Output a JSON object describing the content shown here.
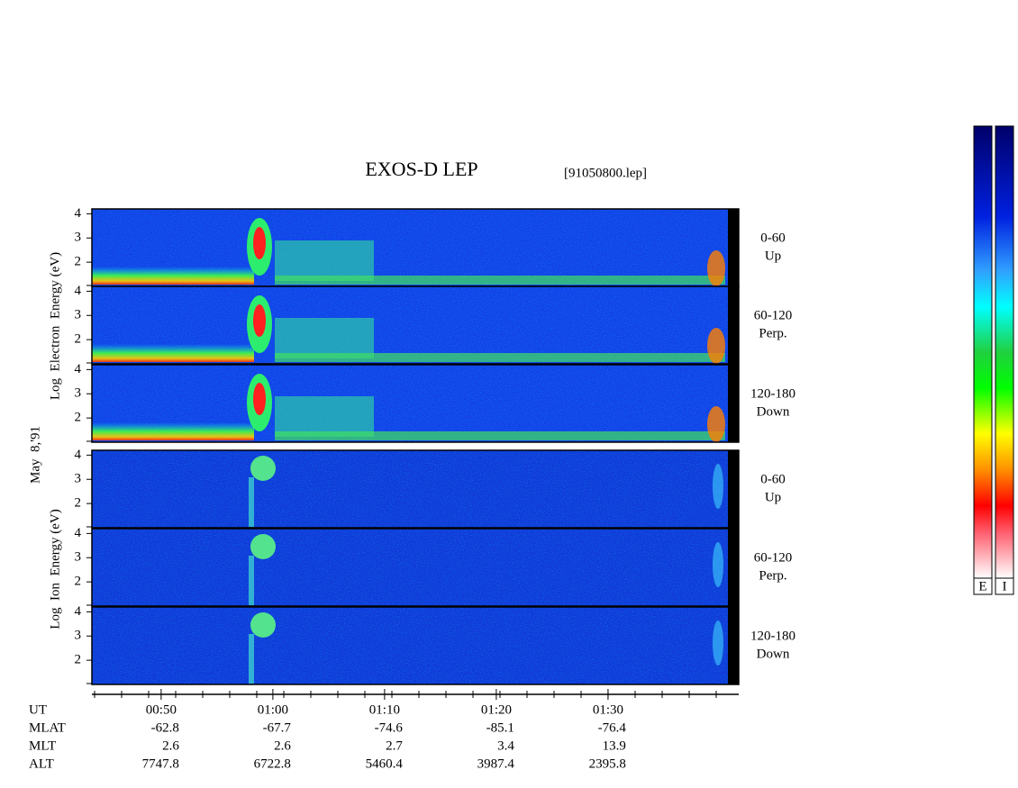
{
  "chart_data": {
    "type": "spectrogram",
    "title": "EXOS-D LEP",
    "subtitle": "[91050800.lep]",
    "date": "May  8,'91",
    "electron_ylabel": "Log  Electron  Energy (eV)",
    "ion_ylabel": "Log  Ion  Energy (eV)",
    "panel_labels": [
      [
        "0-60",
        "Up"
      ],
      [
        "60-120",
        "Perp."
      ],
      [
        "120-180",
        "Down"
      ]
    ],
    "ylim": [
      1,
      4.2
    ],
    "yticks": [
      2,
      3,
      4
    ],
    "xlabel": "UT",
    "xlim": [
      43.8,
      101.7
    ],
    "xticks": [
      {
        "value": 50,
        "label": "00:50"
      },
      {
        "value": 60,
        "label": "01:00"
      },
      {
        "value": 70,
        "label": "01:10"
      },
      {
        "value": 80,
        "label": "01:20"
      },
      {
        "value": 90,
        "label": "01:30"
      }
    ],
    "ephemeris": [
      {
        "name": "MLAT",
        "values": [
          -62.8,
          -67.7,
          -74.6,
          -85.1,
          -76.4
        ]
      },
      {
        "name": "MLT",
        "values": [
          2.6,
          2.6,
          2.7,
          3.4,
          13.9
        ]
      },
      {
        "name": "ALT",
        "values": [
          7747.8,
          6722.8,
          5460.4,
          3987.4,
          2395.8
        ]
      }
    ],
    "colorbar_labels": [
      "E",
      "I"
    ]
  }
}
